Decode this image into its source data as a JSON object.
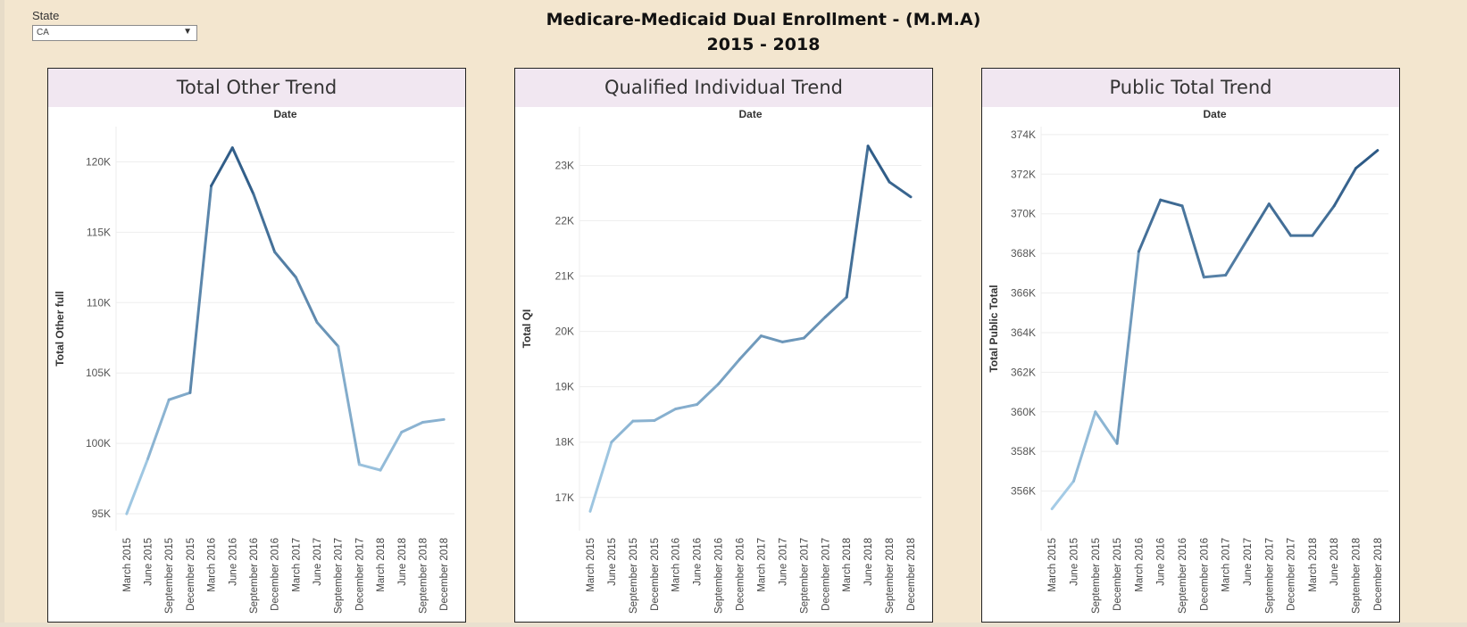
{
  "filter": {
    "label": "State",
    "value": "CA"
  },
  "header": {
    "title_line1": "Medicare-Medicaid Dual Enrollment - (M.M.A)",
    "title_line2": "2015 - 2018"
  },
  "chart_data": [
    {
      "type": "line",
      "title": "Total Other Trend",
      "xlabel": "Date",
      "ylabel": "Total Other full",
      "ylim": [
        93800,
        122500
      ],
      "yticks": [
        95000,
        100000,
        105000,
        110000,
        115000,
        120000
      ],
      "ytick_labels": [
        "95K",
        "100K",
        "105K",
        "110K",
        "115K",
        "120K"
      ],
      "grid": true,
      "color_scale": [
        "#a9d0ea",
        "#2a5783"
      ],
      "categories": [
        "March 2015",
        "June 2015",
        "September 2015",
        "December 2015",
        "March 2016",
        "June 2016",
        "September 2016",
        "December 2016",
        "March 2017",
        "June 2017",
        "September 2017",
        "December 2017",
        "March 2018",
        "June 2018",
        "September 2018",
        "December 2018"
      ],
      "values": [
        95000,
        98900,
        103100,
        103600,
        118300,
        121000,
        117700,
        113600,
        111800,
        108600,
        106900,
        98500,
        98100,
        100800,
        101500,
        101700
      ]
    },
    {
      "type": "line",
      "title": "Qualified Individual Trend",
      "xlabel": "Date",
      "ylabel": "Total QI",
      "ylim": [
        16400,
        23700
      ],
      "yticks": [
        17000,
        18000,
        19000,
        20000,
        21000,
        22000,
        23000
      ],
      "ytick_labels": [
        "17K",
        "18K",
        "19K",
        "20K",
        "21K",
        "22K",
        "23K"
      ],
      "grid": true,
      "color_scale": [
        "#a9d0ea",
        "#2a5783"
      ],
      "categories": [
        "March 2015",
        "June 2015",
        "September 2015",
        "December 2015",
        "March 2016",
        "June 2016",
        "September 2016",
        "December 2016",
        "March 2017",
        "June 2017",
        "September 2017",
        "December 2017",
        "March 2018",
        "June 2018",
        "September 2018",
        "December 2018"
      ],
      "values": [
        16750,
        18000,
        18380,
        18390,
        18600,
        18680,
        19050,
        19500,
        19920,
        19810,
        19880,
        20260,
        20620,
        23350,
        22700,
        22430
      ]
    },
    {
      "type": "line",
      "title": "Public Total Trend",
      "xlabel": "Date",
      "ylabel": "Total Public Total",
      "ylim": [
        354000,
        374400
      ],
      "yticks": [
        356000,
        358000,
        360000,
        362000,
        364000,
        366000,
        368000,
        370000,
        372000,
        374000
      ],
      "ytick_labels": [
        "356K",
        "358K",
        "360K",
        "362K",
        "364K",
        "366K",
        "368K",
        "370K",
        "372K",
        "374K"
      ],
      "grid": true,
      "color_scale": [
        "#a9d0ea",
        "#2a5783"
      ],
      "categories": [
        "March 2015",
        "June 2015",
        "September 2015",
        "December 2015",
        "March 2016",
        "June 2016",
        "September 2016",
        "December 2016",
        "March 2017",
        "June 2017",
        "September 2017",
        "December 2017",
        "March 2018",
        "June 2018",
        "September 2018",
        "December 2018"
      ],
      "values": [
        355100,
        356500,
        360000,
        358400,
        368100,
        370700,
        370400,
        366800,
        366900,
        368700,
        370500,
        368900,
        368900,
        370400,
        372300,
        373200
      ]
    }
  ]
}
